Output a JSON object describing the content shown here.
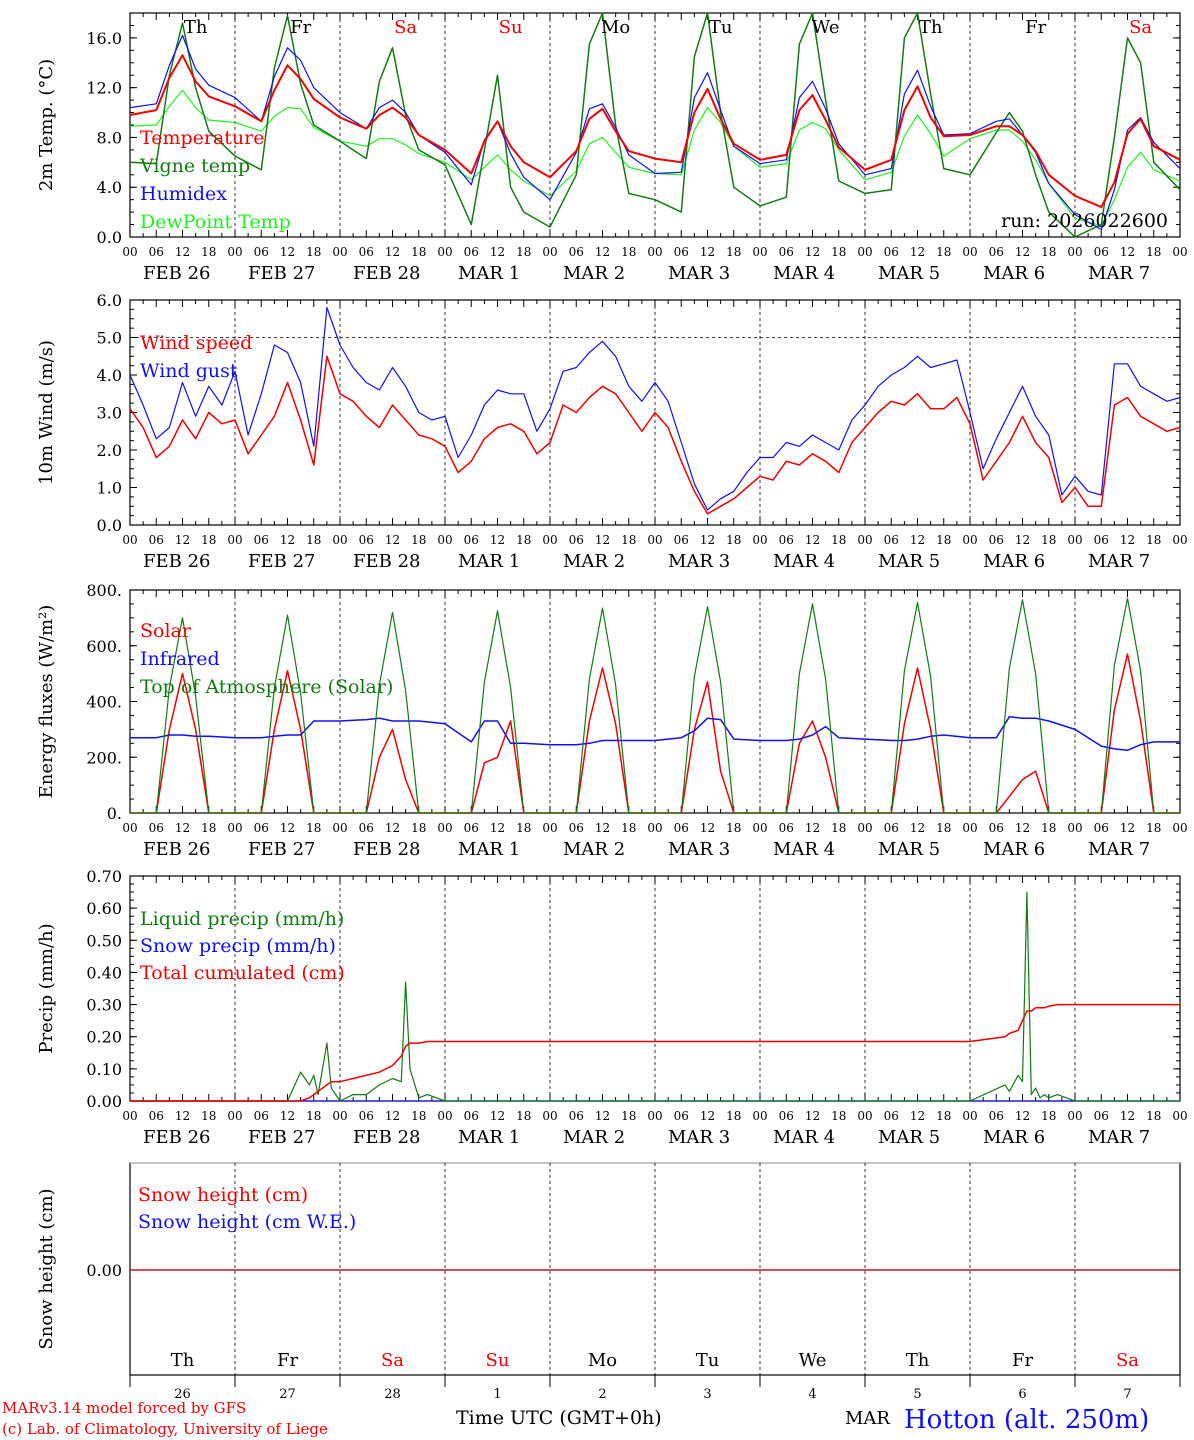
{
  "chart_data": [
    {
      "type": "line",
      "ylabel": "2m Temp. (°C)",
      "ylim": [
        0,
        18
      ],
      "yticks": [
        "0.0",
        "4.0",
        "8.0",
        "12.0",
        "16.0"
      ],
      "run_label": "run: 2026022600",
      "day_labels": [
        "Th",
        "Fr",
        "Sa",
        "Su",
        "Mo",
        "Tu",
        "We",
        "Th",
        "Fr",
        "Sa"
      ],
      "date_labels": [
        "FEB 26",
        "FEB 27",
        "FEB 28",
        "MAR  1",
        "MAR  2",
        "MAR  3",
        "MAR  4",
        "MAR  5",
        "MAR  6",
        "MAR  7"
      ],
      "hour_labels": [
        "00",
        "06",
        "12",
        "18"
      ],
      "hour_end": "00",
      "x_hours": [
        0,
        6,
        9,
        12,
        15,
        18,
        24,
        30,
        33,
        36,
        39,
        42,
        48,
        54,
        57,
        60,
        63,
        66,
        72,
        78,
        81,
        84,
        87,
        90,
        96,
        102,
        105,
        108,
        111,
        114,
        120,
        126,
        129,
        132,
        135,
        138,
        144,
        150,
        153,
        156,
        159,
        162,
        168,
        174,
        177,
        180,
        183,
        186,
        192,
        198,
        201,
        204,
        207,
        210,
        216,
        222,
        225,
        228,
        231,
        234,
        240
      ],
      "series": [
        {
          "name": "Temperature",
          "color": "#ee0000",
          "width": 2,
          "values": [
            9.8,
            10.2,
            12.8,
            14.6,
            12.5,
            11.3,
            10.5,
            9.3,
            11.8,
            13.8,
            12.7,
            11.1,
            9.6,
            8.7,
            9.8,
            10.4,
            9.6,
            8.2,
            7.0,
            5.1,
            7.7,
            9.3,
            7.3,
            6.0,
            4.8,
            6.9,
            9.5,
            10.3,
            8.5,
            6.9,
            6.3,
            6.0,
            10.0,
            11.9,
            9.5,
            7.5,
            6.2,
            6.6,
            10.2,
            11.4,
            9.4,
            7.2,
            5.4,
            6.2,
            10.2,
            12.1,
            9.6,
            8.1,
            8.2,
            8.9,
            8.9,
            8.2,
            6.9,
            5.0,
            3.3,
            2.4,
            4.4,
            8.3,
            9.5,
            7.3,
            6.2
          ]
        },
        {
          "name": "Vigne temp",
          "color": "#127a12",
          "width": 1.5,
          "values": [
            6.0,
            5.9,
            13.0,
            17.2,
            12.0,
            8.5,
            6.5,
            5.4,
            13.6,
            17.8,
            12.3,
            9.0,
            7.7,
            6.3,
            12.5,
            15.2,
            9.8,
            7.0,
            5.8,
            1.0,
            7.0,
            13.0,
            4.0,
            2.0,
            0.8,
            5.0,
            15.5,
            18.0,
            9.0,
            3.5,
            3.0,
            2.0,
            14.5,
            18.0,
            10.0,
            4.0,
            2.5,
            3.2,
            15.5,
            18.0,
            11.0,
            4.5,
            3.5,
            3.8,
            16.0,
            18.0,
            11.5,
            5.5,
            5.0,
            8.4,
            10.0,
            8.5,
            5.0,
            2.0,
            0.0,
            1.0,
            8.0,
            16.0,
            14.0,
            6.0,
            3.8
          ]
        },
        {
          "name": "Humidex",
          "color": "#1010ee",
          "width": 1.2,
          "values": [
            10.4,
            10.7,
            13.8,
            16.2,
            13.5,
            12.2,
            11.2,
            9.3,
            12.9,
            15.2,
            14.2,
            12.0,
            10.0,
            8.7,
            10.4,
            11.0,
            10.0,
            8.2,
            6.8,
            4.2,
            7.8,
            9.3,
            6.7,
            4.8,
            3.0,
            6.8,
            10.3,
            10.7,
            8.8,
            6.6,
            5.1,
            5.2,
            11.2,
            13.2,
            10.2,
            7.3,
            5.9,
            6.2,
            11.2,
            12.5,
            10.3,
            7.5,
            5.0,
            5.5,
            11.5,
            13.4,
            10.5,
            8.2,
            8.3,
            9.3,
            9.5,
            8.2,
            6.8,
            4.3,
            1.8,
            0.6,
            3.8,
            8.6,
            9.6,
            7.6,
            5.5
          ]
        },
        {
          "name": "DewPoint Temp",
          "color": "#22ee22",
          "width": 1.2,
          "values": [
            8.9,
            9.0,
            10.5,
            11.8,
            10.4,
            9.4,
            9.2,
            8.5,
            9.7,
            10.4,
            10.3,
            8.8,
            7.7,
            7.3,
            7.9,
            7.9,
            7.4,
            6.7,
            6.0,
            4.6,
            5.6,
            6.6,
            5.4,
            4.5,
            3.3,
            5.3,
            7.5,
            8.0,
            6.8,
            5.6,
            5.1,
            5.0,
            8.6,
            10.4,
            9.2,
            7.3,
            5.6,
            5.9,
            8.6,
            9.2,
            8.7,
            7.0,
            4.6,
            5.2,
            8.1,
            9.8,
            8.3,
            6.5,
            7.9,
            8.6,
            8.6,
            7.7,
            6.2,
            4.3,
            1.5,
            0.9,
            3.0,
            5.6,
            6.8,
            5.4,
            4.5
          ]
        }
      ]
    },
    {
      "type": "line",
      "ylabel": "10m Wind (m/s)",
      "ylim": [
        0,
        6
      ],
      "yticks": [
        "0.0",
        "1.0",
        "2.0",
        "3.0",
        "4.0",
        "5.0",
        "6.0"
      ],
      "ref_line": 5.0,
      "x_hours": [
        0,
        3,
        6,
        9,
        12,
        15,
        18,
        21,
        24,
        27,
        30,
        33,
        36,
        39,
        42,
        45,
        48,
        51,
        54,
        57,
        60,
        63,
        66,
        69,
        72,
        75,
        78,
        81,
        84,
        87,
        90,
        93,
        96,
        99,
        102,
        105,
        108,
        111,
        114,
        117,
        120,
        123,
        126,
        129,
        132,
        135,
        138,
        141,
        144,
        147,
        150,
        153,
        156,
        159,
        162,
        165,
        168,
        171,
        174,
        177,
        180,
        183,
        186,
        189,
        192,
        195,
        198,
        201,
        204,
        207,
        210,
        213,
        216,
        219,
        222,
        225,
        228,
        231,
        234,
        237,
        240
      ],
      "series": [
        {
          "name": "Wind speed",
          "color": "#ee0000",
          "width": 1.5,
          "values": [
            3.1,
            2.6,
            1.8,
            2.1,
            2.8,
            2.3,
            3.0,
            2.7,
            2.8,
            1.9,
            2.4,
            2.9,
            3.8,
            2.8,
            1.6,
            4.5,
            3.5,
            3.3,
            2.9,
            2.6,
            3.2,
            2.8,
            2.4,
            2.3,
            2.1,
            1.4,
            1.7,
            2.3,
            2.6,
            2.7,
            2.5,
            1.9,
            2.2,
            3.2,
            3.0,
            3.4,
            3.7,
            3.5,
            3.0,
            2.5,
            3.0,
            2.6,
            1.7,
            0.9,
            0.3,
            0.5,
            0.7,
            1.0,
            1.3,
            1.2,
            1.7,
            1.6,
            1.9,
            1.7,
            1.4,
            2.2,
            2.6,
            3.0,
            3.3,
            3.2,
            3.5,
            3.1,
            3.1,
            3.4,
            2.7,
            1.2,
            1.7,
            2.2,
            2.9,
            2.2,
            1.8,
            0.6,
            1.0,
            0.5,
            0.5,
            3.2,
            3.4,
            2.9,
            2.7,
            2.5,
            2.6
          ]
        },
        {
          "name": "Wind gust",
          "color": "#1010ee",
          "width": 1.2,
          "values": [
            4.0,
            3.2,
            2.3,
            2.6,
            3.8,
            2.9,
            3.7,
            3.2,
            4.1,
            2.4,
            3.5,
            4.8,
            4.6,
            3.8,
            2.1,
            5.8,
            4.8,
            4.2,
            3.8,
            3.6,
            4.2,
            3.7,
            3.0,
            2.8,
            2.9,
            1.8,
            2.4,
            3.2,
            3.6,
            3.5,
            3.5,
            2.5,
            3.1,
            4.1,
            4.2,
            4.6,
            4.9,
            4.5,
            3.7,
            3.3,
            3.8,
            3.3,
            2.2,
            1.1,
            0.4,
            0.7,
            0.9,
            1.4,
            1.8,
            1.8,
            2.2,
            2.1,
            2.4,
            2.2,
            2.0,
            2.8,
            3.2,
            3.7,
            4.0,
            4.2,
            4.5,
            4.2,
            4.3,
            4.4,
            3.0,
            1.5,
            2.3,
            3.0,
            3.7,
            2.9,
            2.4,
            0.8,
            1.3,
            0.9,
            0.8,
            4.3,
            4.3,
            3.7,
            3.5,
            3.3,
            3.4
          ]
        }
      ]
    },
    {
      "type": "line",
      "ylabel": "Energy fluxes (W/m²)",
      "ylim": [
        0,
        800
      ],
      "yticks": [
        "0.",
        "200.",
        "400.",
        "600.",
        "800."
      ],
      "x_hours": [
        0,
        6,
        9,
        12,
        15,
        18,
        24,
        30,
        33,
        36,
        39,
        42,
        48,
        54,
        57,
        60,
        63,
        66,
        72,
        78,
        81,
        84,
        87,
        90,
        96,
        102,
        105,
        108,
        111,
        114,
        120,
        126,
        129,
        132,
        135,
        138,
        144,
        150,
        153,
        156,
        159,
        162,
        168,
        174,
        177,
        180,
        183,
        186,
        192,
        198,
        201,
        204,
        207,
        210,
        216,
        222,
        225,
        228,
        231,
        234,
        240
      ],
      "series": [
        {
          "name": "Solar",
          "color": "#ee0000",
          "width": 1.5,
          "values": [
            0,
            0,
            300,
            500,
            300,
            0,
            0,
            0,
            300,
            510,
            300,
            0,
            0,
            0,
            200,
            300,
            120,
            0,
            0,
            0,
            180,
            200,
            330,
            0,
            0,
            0,
            330,
            520,
            320,
            0,
            0,
            0,
            300,
            470,
            150,
            0,
            0,
            0,
            250,
            330,
            200,
            0,
            0,
            0,
            320,
            520,
            300,
            0,
            0,
            0,
            60,
            120,
            150,
            0,
            0,
            0,
            370,
            570,
            330,
            0,
            0
          ]
        },
        {
          "name": "Infrared",
          "color": "#1010ee",
          "width": 1.5,
          "values": [
            270,
            270,
            280,
            280,
            275,
            275,
            270,
            270,
            275,
            280,
            280,
            330,
            330,
            335,
            340,
            330,
            330,
            330,
            320,
            255,
            330,
            330,
            250,
            250,
            245,
            245,
            250,
            260,
            260,
            260,
            260,
            270,
            295,
            340,
            335,
            265,
            260,
            260,
            265,
            280,
            310,
            270,
            265,
            260,
            260,
            265,
            275,
            280,
            270,
            270,
            345,
            340,
            340,
            330,
            300,
            240,
            230,
            225,
            245,
            255,
            255
          ]
        },
        {
          "name": "Top of Atmosphere (Solar)",
          "color": "#127a12",
          "width": 1.2,
          "values": [
            0,
            0,
            450,
            700,
            420,
            0,
            0,
            0,
            450,
            710,
            430,
            0,
            0,
            0,
            460,
            720,
            440,
            0,
            0,
            0,
            470,
            725,
            450,
            0,
            0,
            0,
            480,
            735,
            460,
            0,
            0,
            0,
            490,
            740,
            470,
            0,
            0,
            0,
            500,
            750,
            480,
            0,
            0,
            0,
            510,
            755,
            490,
            0,
            0,
            0,
            520,
            765,
            500,
            0,
            0,
            0,
            530,
            770,
            510,
            0,
            0
          ]
        }
      ]
    },
    {
      "type": "line",
      "ylabel": "Precip (mm/h)",
      "ylim": [
        0,
        0.7
      ],
      "yticks": [
        "0.00",
        "0.10",
        "0.20",
        "0.30",
        "0.40",
        "0.50",
        "0.60",
        "0.70"
      ],
      "x_hours": [
        0,
        24,
        36,
        39,
        41,
        42,
        43,
        45,
        46,
        48,
        51,
        54,
        57,
        60,
        62,
        63,
        64,
        66,
        68,
        72,
        78,
        84,
        96,
        120,
        144,
        168,
        192,
        200,
        201,
        203,
        204,
        205,
        206,
        207,
        208,
        209,
        210,
        212,
        214,
        216,
        240
      ],
      "series": [
        {
          "name": "Liquid precip (mm/h)",
          "color": "#127a12",
          "width": 1.2,
          "values": [
            0,
            0,
            0,
            0.09,
            0.05,
            0.08,
            0.02,
            0.18,
            0.04,
            0.0,
            0.02,
            0.02,
            0.05,
            0.07,
            0.06,
            0.37,
            0.1,
            0.01,
            0.02,
            0,
            0,
            0,
            0,
            0,
            0,
            0,
            0,
            0.05,
            0.03,
            0.08,
            0.06,
            0.65,
            0.02,
            0.04,
            0.01,
            0.02,
            0.01,
            0.02,
            0.01,
            0,
            0
          ]
        },
        {
          "name": "Snow precip (mm/h)",
          "color": "#1010ee",
          "width": 1.2,
          "values": [
            0,
            0,
            0,
            0,
            0,
            0,
            0,
            0,
            0,
            0,
            0,
            0,
            0,
            0,
            0,
            0,
            0,
            0,
            0,
            0,
            0,
            0,
            0,
            0,
            0,
            0,
            0,
            0,
            0,
            0,
            0,
            0,
            0,
            0,
            0,
            0,
            0,
            0,
            0,
            0,
            0
          ]
        },
        {
          "name": "Total cumulated (cm)",
          "color": "#ee0000",
          "width": 1.5,
          "values": [
            0,
            0,
            0,
            0,
            0.01,
            0.02,
            0.03,
            0.05,
            0.06,
            0.06,
            0.07,
            0.08,
            0.09,
            0.11,
            0.14,
            0.17,
            0.18,
            0.18,
            0.185,
            0.185,
            0.185,
            0.185,
            0.185,
            0.185,
            0.185,
            0.185,
            0.185,
            0.2,
            0.21,
            0.22,
            0.25,
            0.28,
            0.28,
            0.29,
            0.29,
            0.29,
            0.295,
            0.3,
            0.3,
            0.3,
            0.3
          ]
        }
      ]
    },
    {
      "type": "line",
      "ylabel": "Snow height (cm)",
      "yticks": [
        "0.00"
      ],
      "x_hours": [
        0,
        240
      ],
      "series": [
        {
          "name": "Snow height (cm)",
          "color": "#ee0000",
          "width": 1.2,
          "values": [
            0,
            0
          ]
        },
        {
          "name": "Snow height (cm W.E.)",
          "color": "#1010ee",
          "width": 1.2,
          "values": [
            0,
            0
          ]
        }
      ],
      "day_labels": [
        "Th",
        "Fr",
        "Sa",
        "Su",
        "Mo",
        "Tu",
        "We",
        "Th",
        "Fr",
        "Sa"
      ],
      "day_numbers": [
        "26",
        "27",
        "28",
        "1",
        "2",
        "3",
        "4",
        "5",
        "6",
        "7"
      ],
      "month_label": "MAR",
      "xlabel": "Time UTC (GMT+0h)"
    }
  ],
  "footer": {
    "model_line": "MARv3.14 model forced by GFS",
    "lab_line": "(c) Lab. of Climatology, University of Liege",
    "location": "Hotton (alt. 250m)"
  },
  "colors": {
    "weekend": "#ee0000",
    "weekday": "#000000",
    "location": "#1010ee"
  }
}
